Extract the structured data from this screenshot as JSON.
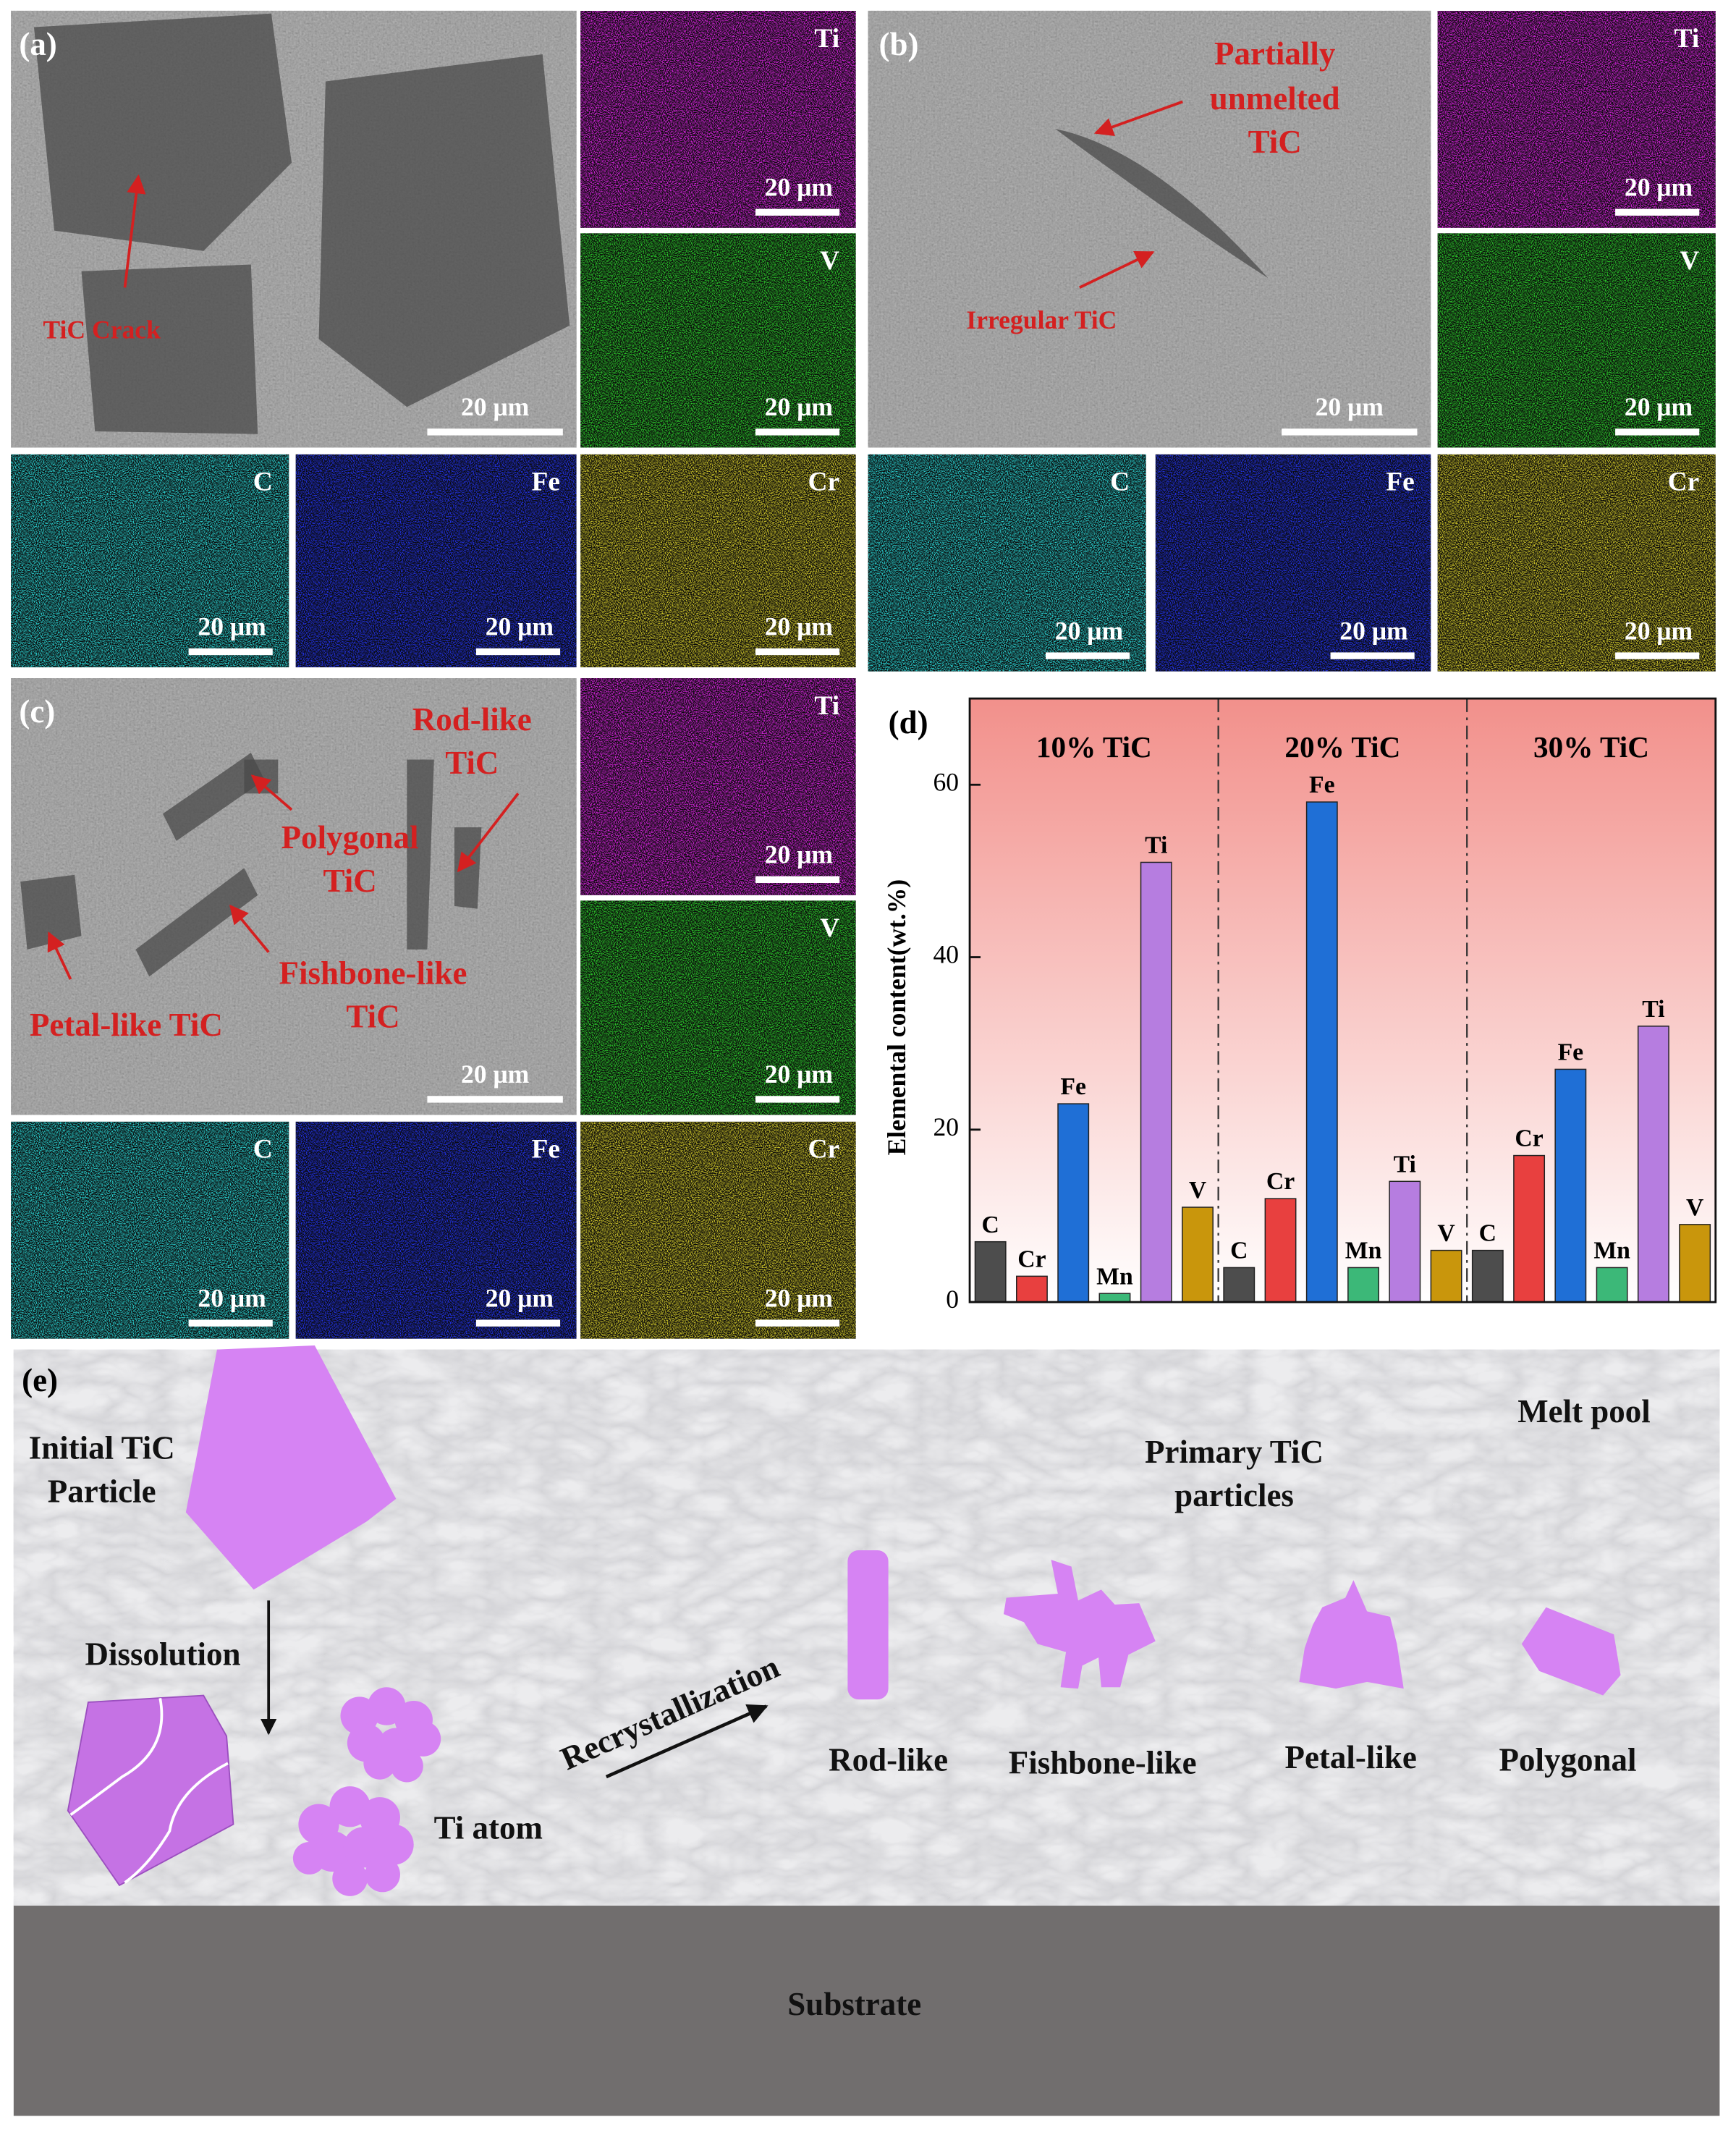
{
  "panel_a": {
    "label": "(a)",
    "scale": "20 μm",
    "annotations": [
      [
        "TiC Crack"
      ]
    ],
    "maps": [
      {
        "element": "Ti",
        "scale": "20 μm",
        "color": "#d624de"
      },
      {
        "element": "V",
        "scale": "20 μm",
        "color": "#2cc82c"
      },
      {
        "element": "C",
        "scale": "20 μm",
        "color": "#2ad0d0"
      },
      {
        "element": "Fe",
        "scale": "20 μm",
        "color": "#2232e6"
      },
      {
        "element": "Cr",
        "scale": "20 μm",
        "color": "#cfc62a"
      }
    ]
  },
  "panel_b": {
    "label": "(b)",
    "scale": "20 μm",
    "annotations": [
      [
        "Partially",
        "unmelted",
        "TiC"
      ],
      [
        "Irregular TiC"
      ]
    ],
    "maps": [
      {
        "element": "Ti",
        "scale": "20 μm",
        "color": "#d624de"
      },
      {
        "element": "V",
        "scale": "20 μm",
        "color": "#2cc82c"
      },
      {
        "element": "C",
        "scale": "20 μm",
        "color": "#2ad0d0"
      },
      {
        "element": "Fe",
        "scale": "20 μm",
        "color": "#2232e6"
      },
      {
        "element": "Cr",
        "scale": "20 μm",
        "color": "#cfc62a"
      }
    ]
  },
  "panel_c": {
    "label": "(c)",
    "scale": "20 μm",
    "annotations": [
      [
        "Rod-like",
        "TiC"
      ],
      [
        "Polygonal",
        "TiC"
      ],
      [
        "Fishbone-like",
        "TiC"
      ],
      [
        "Petal-like TiC"
      ]
    ],
    "maps": [
      {
        "element": "Ti",
        "scale": "20 μm",
        "color": "#d624de"
      },
      {
        "element": "V",
        "scale": "20 μm",
        "color": "#2cc82c"
      },
      {
        "element": "C",
        "scale": "20 μm",
        "color": "#2ad0d0"
      },
      {
        "element": "Fe",
        "scale": "20 μm",
        "color": "#2232e6"
      },
      {
        "element": "Cr",
        "scale": "20 μm",
        "color": "#cfc62a"
      }
    ]
  },
  "chart_data": {
    "type": "bar",
    "label": "(d)",
    "y_label": "Elemental content(wt.%)",
    "categories": [
      "10% TiC",
      "20% TiC",
      "30% TiC"
    ],
    "series": [
      {
        "name": "C",
        "color": "#4d4d4d",
        "values": [
          7,
          4,
          6
        ]
      },
      {
        "name": "Cr",
        "color": "#e8403f",
        "values": [
          3,
          12,
          17
        ]
      },
      {
        "name": "Fe",
        "color": "#1f6fd6",
        "values": [
          23,
          58,
          27
        ]
      },
      {
        "name": "Mn",
        "color": "#3cb878",
        "values": [
          1,
          4,
          4
        ]
      },
      {
        "name": "Ti",
        "color": "#b67de0",
        "values": [
          51,
          14,
          32
        ]
      },
      {
        "name": "V",
        "color": "#c9960c",
        "values": [
          11,
          6,
          9
        ]
      }
    ],
    "ylim": [
      0,
      70
    ],
    "yticks": [
      0,
      20,
      40,
      60
    ]
  },
  "panel_e": {
    "label": "(e)",
    "initial_particle": [
      "Initial TiC",
      "Particle"
    ],
    "dissolution": "Dissolution",
    "ti_atom": "Ti atom",
    "recrystallization": "Recrystallization",
    "primary": [
      "Primary TiC",
      "particles"
    ],
    "melt_pool": "Melt pool",
    "shapes": [
      "Rod-like",
      "Fishbone-like",
      "Petal-like",
      "Polygonal"
    ],
    "substrate": "Substrate"
  }
}
